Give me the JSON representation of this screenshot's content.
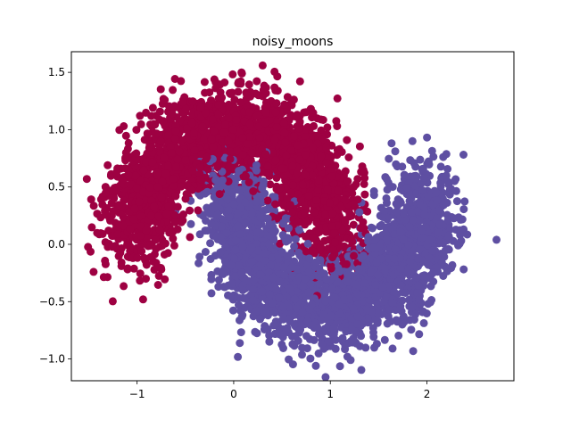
{
  "chart_data": {
    "type": "scatter",
    "title": "noisy_moons",
    "xlabel": "",
    "ylabel": "",
    "xlim": [
      -1.68,
      2.9
    ],
    "ylim": [
      -1.19,
      1.68
    ],
    "x_ticks": [
      -1,
      0,
      1,
      2
    ],
    "x_tick_labels": [
      "−1",
      "0",
      "1",
      "2"
    ],
    "y_ticks": [
      -1.0,
      -0.5,
      0.0,
      0.5,
      1.0,
      1.5
    ],
    "y_tick_labels": [
      "−1.0",
      "−0.5",
      "0.0",
      "0.5",
      "1.0",
      "1.5"
    ],
    "grid": false,
    "legend": "none",
    "point_count_per_class": 2500,
    "noise_std": 0.2,
    "series": [
      {
        "color": "#9e0142",
        "shape": "upper-moon",
        "approx_outer_extremes": [
          [
            -1.52,
            0.57
          ],
          [
            0.3,
            1.56
          ],
          [
            1.33,
            0.68
          ],
          [
            -1.45,
            -0.24
          ]
        ]
      },
      {
        "color": "#5e4fa2",
        "shape": "lower-moon",
        "approx_outer_extremes": [
          [
            2.72,
            0.04
          ],
          [
            0.85,
            -1.06
          ],
          [
            1.85,
            0.9
          ],
          [
            -0.35,
            0.72
          ]
        ]
      }
    ]
  }
}
